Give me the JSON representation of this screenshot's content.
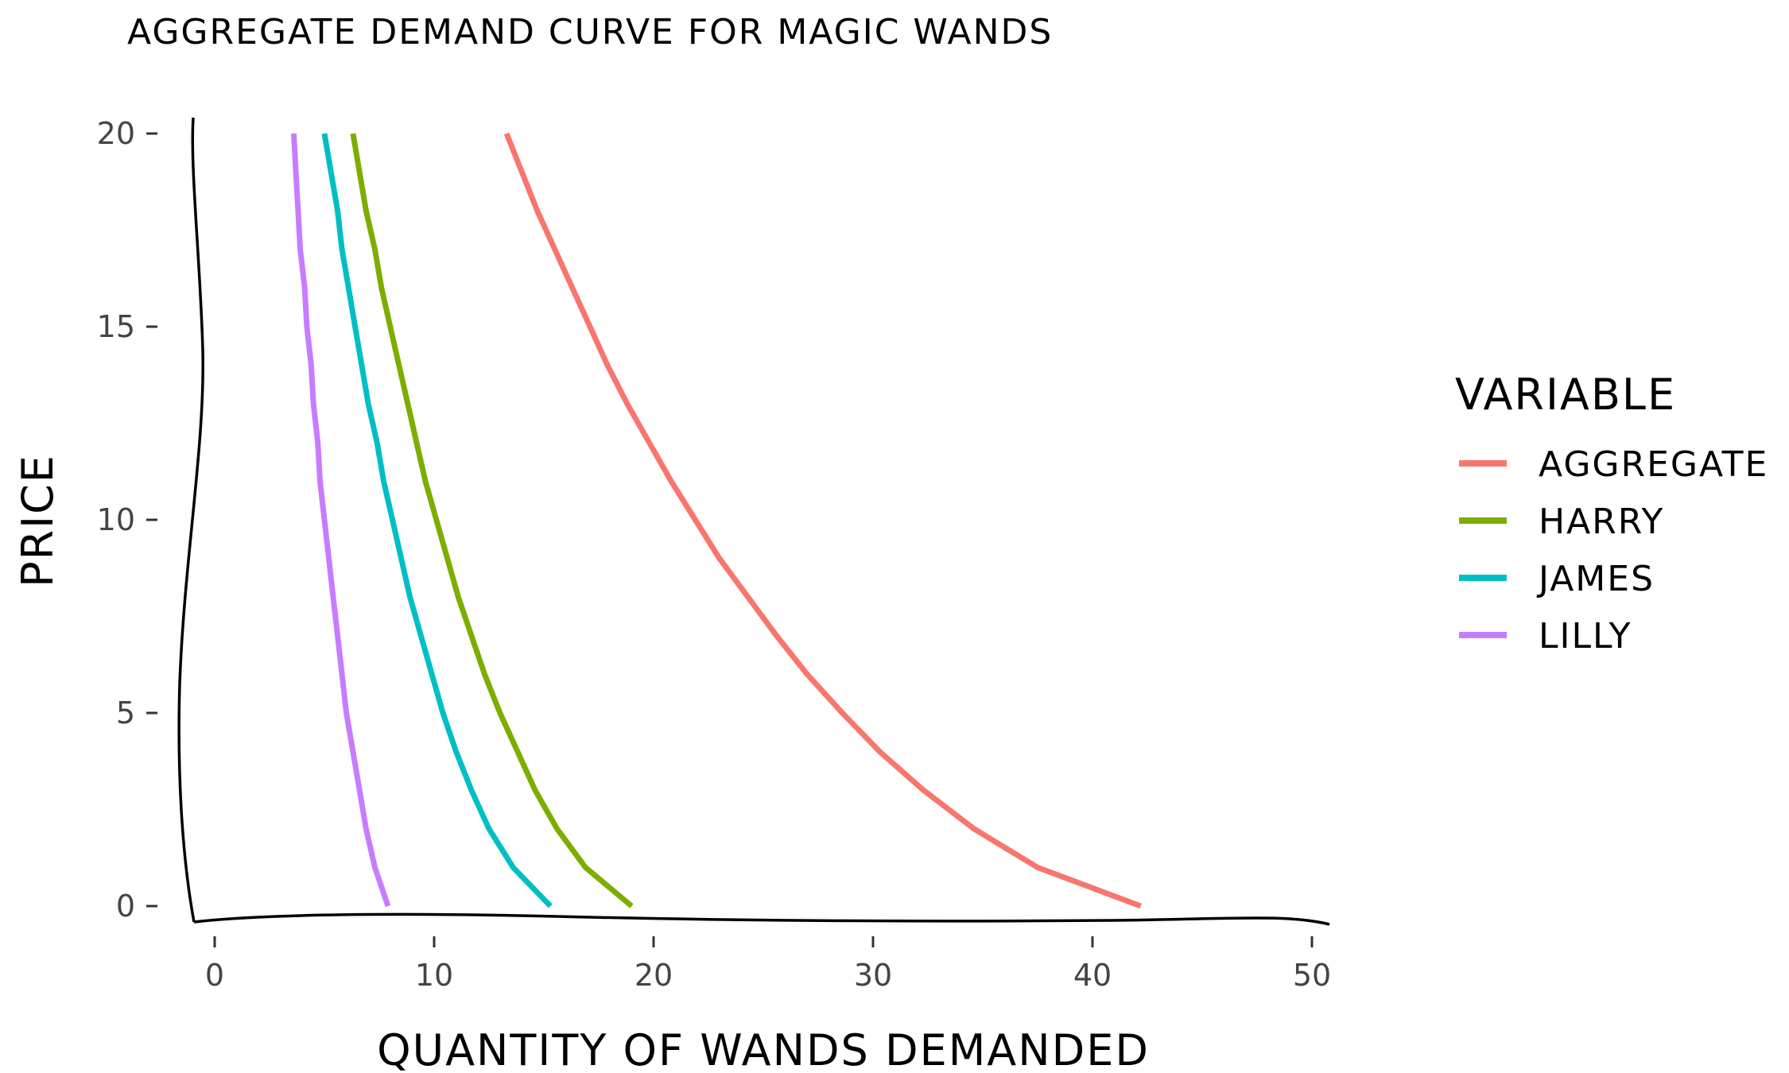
{
  "chart_data": {
    "type": "line",
    "title": "AGGREGATE DEMAND CURVE FOR MAGIC WANDS",
    "xlabel": "QUANTITY OF WANDS DEMANDED",
    "ylabel": "PRICE",
    "xlim": [
      -1.5,
      51
    ],
    "ylim": [
      -0.5,
      20.5
    ],
    "xticks": [
      0,
      10,
      20,
      30,
      40,
      50
    ],
    "yticks": [
      0,
      5,
      10,
      15,
      20
    ],
    "legend": {
      "title": "VARIABLE",
      "position": "right"
    },
    "series": [
      {
        "name": "AGGREGATE",
        "color": "#F8766D",
        "points": [
          [
            42.2,
            0
          ],
          [
            37.5,
            1
          ],
          [
            34.6,
            2
          ],
          [
            32.3,
            3
          ],
          [
            30.3,
            4
          ],
          [
            28.6,
            5
          ],
          [
            27.0,
            6
          ],
          [
            25.6,
            7
          ],
          [
            24.3,
            8
          ],
          [
            23.0,
            9
          ],
          [
            21.9,
            10
          ],
          [
            20.8,
            11
          ],
          [
            19.8,
            12
          ],
          [
            18.8,
            13
          ],
          [
            17.9,
            14
          ],
          [
            17.1,
            15
          ],
          [
            16.3,
            16
          ],
          [
            15.5,
            17
          ],
          [
            14.7,
            18
          ],
          [
            14.0,
            19
          ],
          [
            13.3,
            20
          ]
        ]
      },
      {
        "name": "HARRY",
        "color": "#7CAE00",
        "points": [
          [
            19.0,
            0
          ],
          [
            16.9,
            1
          ],
          [
            15.6,
            2
          ],
          [
            14.6,
            3
          ],
          [
            13.8,
            4
          ],
          [
            13.0,
            5
          ],
          [
            12.3,
            6
          ],
          [
            11.7,
            7
          ],
          [
            11.1,
            8
          ],
          [
            10.6,
            9
          ],
          [
            10.1,
            10
          ],
          [
            9.6,
            11
          ],
          [
            9.2,
            12
          ],
          [
            8.8,
            13
          ],
          [
            8.4,
            14
          ],
          [
            8.0,
            15
          ],
          [
            7.6,
            16
          ],
          [
            7.3,
            17
          ],
          [
            6.9,
            18
          ],
          [
            6.6,
            19
          ],
          [
            6.3,
            20
          ]
        ]
      },
      {
        "name": "JAMES",
        "color": "#00BFC4",
        "points": [
          [
            15.3,
            0
          ],
          [
            13.6,
            1
          ],
          [
            12.5,
            2
          ],
          [
            11.7,
            3
          ],
          [
            11.0,
            4
          ],
          [
            10.4,
            5
          ],
          [
            9.9,
            6
          ],
          [
            9.4,
            7
          ],
          [
            8.9,
            8
          ],
          [
            8.5,
            9
          ],
          [
            8.1,
            10
          ],
          [
            7.7,
            11
          ],
          [
            7.4,
            12
          ],
          [
            7.0,
            13
          ],
          [
            6.7,
            14
          ],
          [
            6.4,
            15
          ],
          [
            6.1,
            16
          ],
          [
            5.8,
            17
          ],
          [
            5.6,
            18
          ],
          [
            5.3,
            19
          ],
          [
            5.0,
            20
          ]
        ]
      },
      {
        "name": "LILLY",
        "color": "#C77CFF",
        "points": [
          [
            7.9,
            0
          ],
          [
            7.3,
            1
          ],
          [
            6.9,
            2
          ],
          [
            6.6,
            3
          ],
          [
            6.3,
            4
          ],
          [
            6.0,
            5
          ],
          [
            5.8,
            6
          ],
          [
            5.6,
            7
          ],
          [
            5.4,
            8
          ],
          [
            5.2,
            9
          ],
          [
            5.0,
            10
          ],
          [
            4.8,
            11
          ],
          [
            4.7,
            12
          ],
          [
            4.5,
            13
          ],
          [
            4.4,
            14
          ],
          [
            4.2,
            15
          ],
          [
            4.1,
            16
          ],
          [
            3.9,
            17
          ],
          [
            3.8,
            18
          ],
          [
            3.7,
            19
          ],
          [
            3.6,
            20
          ]
        ]
      }
    ]
  }
}
